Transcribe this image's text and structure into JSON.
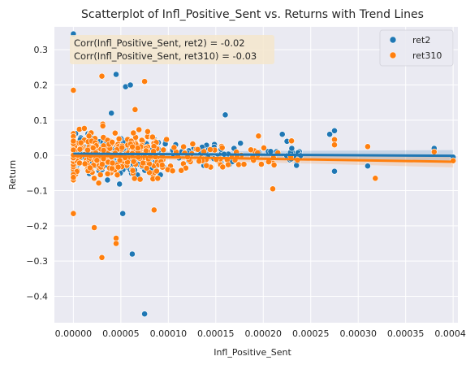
{
  "chart_data": {
    "type": "scatter",
    "title": "Scatterplot of Infl_Positive_Sent vs. Returns with Trend Lines",
    "xlabel": "Infl_Positive_Sent",
    "ylabel": "Return",
    "xlim": [
      -2e-05,
      0.000405
    ],
    "ylim": [
      -0.475,
      0.365
    ],
    "x_ticks": [
      0.0,
      5e-05,
      0.0001,
      0.00015,
      0.0002,
      0.00025,
      0.0003,
      0.00035,
      0.0004
    ],
    "x_tick_labels": [
      "0.00000",
      "0.00005",
      "0.00010",
      "0.00015",
      "0.00020",
      "0.00025",
      "0.00030",
      "0.00035",
      "0.00040"
    ],
    "y_ticks": [
      -0.4,
      -0.3,
      -0.2,
      -0.1,
      0.0,
      0.1,
      0.2,
      0.3
    ],
    "y_tick_labels": [
      "−0.4",
      "−0.3",
      "−0.2",
      "−0.1",
      "0.0",
      "0.1",
      "0.2",
      "0.3"
    ],
    "grid": true,
    "background": "#eaeaf2",
    "legend_position": "top-right",
    "annotation": {
      "lines": [
        "Corr(Infl_Positive_Sent, ret2) = -0.02",
        "Corr(Infl_Positive_Sent, ret310) = -0.03"
      ],
      "box_color": "#f5e6cc"
    },
    "series": [
      {
        "name": "ret2",
        "color": "#1f77b4",
        "trend": {
          "x": [
            0.0,
            0.0004
          ],
          "y": [
            0.005,
            -0.001
          ]
        },
        "outliers": [
          {
            "x": 0.0,
            "y": 0.345
          },
          {
            "x": 4e-05,
            "y": 0.12
          },
          {
            "x": 4.5e-05,
            "y": 0.23
          },
          {
            "x": 5.5e-05,
            "y": 0.195
          },
          {
            "x": 6e-05,
            "y": 0.2
          },
          {
            "x": 5.2e-05,
            "y": -0.165
          },
          {
            "x": 6.2e-05,
            "y": -0.28
          },
          {
            "x": 7.5e-05,
            "y": -0.45
          },
          {
            "x": 0.00016,
            "y": 0.115
          },
          {
            "x": 0.00022,
            "y": 0.06
          },
          {
            "x": 0.000225,
            "y": 0.04
          },
          {
            "x": 0.00023,
            "y": 0.02
          },
          {
            "x": 0.00027,
            "y": 0.06
          },
          {
            "x": 0.000275,
            "y": 0.07
          },
          {
            "x": 0.000275,
            "y": -0.045
          },
          {
            "x": 0.00031,
            "y": -0.03
          },
          {
            "x": 0.00038,
            "y": 0.02
          },
          {
            "x": 0.0004,
            "y": -0.005
          }
        ]
      },
      {
        "name": "ret310",
        "color": "#ff7f0e",
        "trend": {
          "x": [
            0.0,
            0.0004
          ],
          "y": [
            -0.001,
            -0.018
          ]
        },
        "outliers": [
          {
            "x": 3e-05,
            "y": 0.225
          },
          {
            "x": 7.5e-05,
            "y": 0.21
          },
          {
            "x": 6.5e-05,
            "y": 0.13
          },
          {
            "x": 0.0,
            "y": 0.185
          },
          {
            "x": 2.2e-05,
            "y": -0.205
          },
          {
            "x": 3e-05,
            "y": -0.29
          },
          {
            "x": 4.5e-05,
            "y": -0.235
          },
          {
            "x": 4.5e-05,
            "y": -0.25
          },
          {
            "x": 8.5e-05,
            "y": -0.155
          },
          {
            "x": 0.0,
            "y": -0.165
          },
          {
            "x": 0.00021,
            "y": -0.095
          },
          {
            "x": 0.000195,
            "y": 0.055
          },
          {
            "x": 0.000275,
            "y": 0.045
          },
          {
            "x": 0.000275,
            "y": 0.03
          },
          {
            "x": 0.00031,
            "y": 0.025
          },
          {
            "x": 0.000318,
            "y": -0.065
          },
          {
            "x": 0.00038,
            "y": 0.01
          },
          {
            "x": 0.0004,
            "y": -0.015
          }
        ]
      }
    ]
  }
}
